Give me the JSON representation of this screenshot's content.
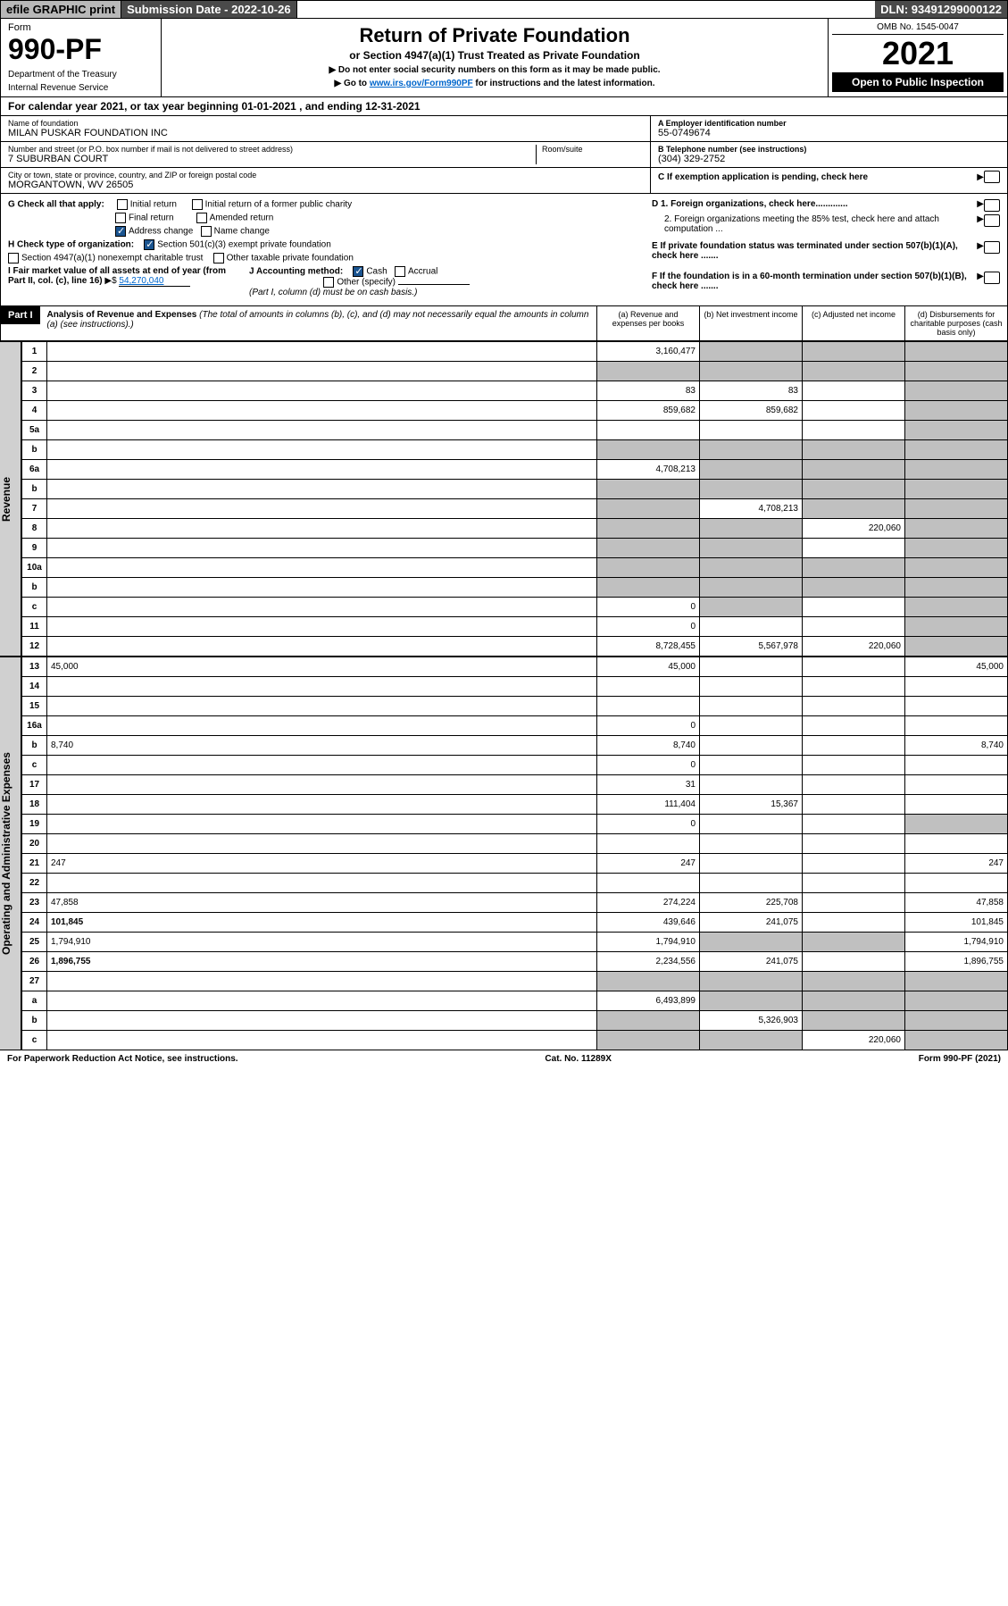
{
  "topbar": {
    "efile": "efile GRAPHIC print",
    "subdate_label": "Submission Date - 2022-10-26",
    "dln": "DLN: 93491299000122"
  },
  "header": {
    "form_word": "Form",
    "form_num": "990-PF",
    "dept": "Department of the Treasury",
    "irs": "Internal Revenue Service",
    "title": "Return of Private Foundation",
    "subtitle": "or Section 4947(a)(1) Trust Treated as Private Foundation",
    "note1": "▶ Do not enter social security numbers on this form as it may be made public.",
    "note2_pre": "▶ Go to ",
    "note2_link": "www.irs.gov/Form990PF",
    "note2_post": " for instructions and the latest information.",
    "omb": "OMB No. 1545-0047",
    "year": "2021",
    "open": "Open to Public Inspection"
  },
  "calyear": "For calendar year 2021, or tax year beginning 01-01-2021                          , and ending 12-31-2021",
  "info": {
    "name_label": "Name of foundation",
    "name": "MILAN PUSKAR FOUNDATION INC",
    "addr_label": "Number and street (or P.O. box number if mail is not delivered to street address)",
    "addr": "7 SUBURBAN COURT",
    "room_label": "Room/suite",
    "city_label": "City or town, state or province, country, and ZIP or foreign postal code",
    "city": "MORGANTOWN, WV  26505",
    "ein_label": "A Employer identification number",
    "ein": "55-0749674",
    "tel_label": "B Telephone number (see instructions)",
    "tel": "(304) 329-2752",
    "c_label": "C If exemption application is pending, check here",
    "d1": "D 1. Foreign organizations, check here.............",
    "d2": "2. Foreign organizations meeting the 85% test, check here and attach computation ...",
    "e": "E  If private foundation status was terminated under section 507(b)(1)(A), check here .......",
    "f": "F  If the foundation is in a 60-month termination under section 507(b)(1)(B), check here .......",
    "g_label": "G Check all that apply:",
    "g_initial": "Initial return",
    "g_initial_former": "Initial return of a former public charity",
    "g_final": "Final return",
    "g_amended": "Amended return",
    "g_address": "Address change",
    "g_name": "Name change",
    "h_label": "H Check type of organization:",
    "h_501c3": "Section 501(c)(3) exempt private foundation",
    "h_4947": "Section 4947(a)(1) nonexempt charitable trust",
    "h_other": "Other taxable private foundation",
    "i_label": "I Fair market value of all assets at end of year (from Part II, col. (c), line 16)",
    "i_val": "54,270,040",
    "j_label": "J Accounting method:",
    "j_cash": "Cash",
    "j_accrual": "Accrual",
    "j_other": "Other (specify)",
    "j_note": "(Part I, column (d) must be on cash basis.)"
  },
  "part1": {
    "badge": "Part I",
    "title": "Analysis of Revenue and Expenses",
    "title_note": " (The total of amounts in columns (b), (c), and (d) may not necessarily equal the amounts in column (a) (see instructions).)",
    "col_a": "(a)   Revenue and expenses per books",
    "col_b": "(b)   Net investment income",
    "col_c": "(c)   Adjusted net income",
    "col_d": "(d)   Disbursements for charitable purposes (cash basis only)"
  },
  "side_revenue": "Revenue",
  "side_expenses": "Operating and Administrative Expenses",
  "rows": [
    {
      "n": "1",
      "d": "",
      "a": "3,160,477",
      "b": "",
      "c": "",
      "grey": [
        "b",
        "c",
        "d"
      ]
    },
    {
      "n": "2",
      "d": "",
      "a": "",
      "b": "",
      "c": "",
      "grey": [
        "a",
        "b",
        "c",
        "d"
      ]
    },
    {
      "n": "3",
      "d": "",
      "a": "83",
      "b": "83",
      "c": "",
      "grey": [
        "d"
      ]
    },
    {
      "n": "4",
      "d": "",
      "a": "859,682",
      "b": "859,682",
      "c": "",
      "grey": [
        "d"
      ]
    },
    {
      "n": "5a",
      "d": "",
      "a": "",
      "b": "",
      "c": "",
      "grey": [
        "d"
      ]
    },
    {
      "n": "b",
      "d": "",
      "a": "",
      "b": "",
      "c": "",
      "grey": [
        "a",
        "b",
        "c",
        "d"
      ]
    },
    {
      "n": "6a",
      "d": "",
      "a": "4,708,213",
      "b": "",
      "c": "",
      "grey": [
        "b",
        "c",
        "d"
      ]
    },
    {
      "n": "b",
      "d": "",
      "a": "",
      "b": "",
      "c": "",
      "grey": [
        "a",
        "b",
        "c",
        "d"
      ]
    },
    {
      "n": "7",
      "d": "",
      "a": "",
      "b": "4,708,213",
      "c": "",
      "grey": [
        "a",
        "c",
        "d"
      ]
    },
    {
      "n": "8",
      "d": "",
      "a": "",
      "b": "",
      "c": "220,060",
      "grey": [
        "a",
        "b",
        "d"
      ]
    },
    {
      "n": "9",
      "d": "",
      "a": "",
      "b": "",
      "c": "",
      "grey": [
        "a",
        "b",
        "d"
      ]
    },
    {
      "n": "10a",
      "d": "",
      "a": "",
      "b": "",
      "c": "",
      "grey": [
        "a",
        "b",
        "c",
        "d"
      ]
    },
    {
      "n": "b",
      "d": "",
      "a": "",
      "b": "",
      "c": "",
      "grey": [
        "a",
        "b",
        "c",
        "d"
      ]
    },
    {
      "n": "c",
      "d": "",
      "a": "0",
      "b": "",
      "c": "",
      "grey": [
        "b",
        "d"
      ]
    },
    {
      "n": "11",
      "d": "",
      "a": "0",
      "b": "",
      "c": "",
      "grey": [
        "d"
      ]
    },
    {
      "n": "12",
      "d": "",
      "a": "8,728,455",
      "b": "5,567,978",
      "c": "220,060",
      "grey": [
        "d"
      ],
      "bold": true
    }
  ],
  "exp_rows": [
    {
      "n": "13",
      "d": "45,000",
      "a": "45,000",
      "b": "",
      "c": ""
    },
    {
      "n": "14",
      "d": "",
      "a": "",
      "b": "",
      "c": ""
    },
    {
      "n": "15",
      "d": "",
      "a": "",
      "b": "",
      "c": ""
    },
    {
      "n": "16a",
      "d": "",
      "a": "0",
      "b": "",
      "c": ""
    },
    {
      "n": "b",
      "d": "8,740",
      "a": "8,740",
      "b": "",
      "c": ""
    },
    {
      "n": "c",
      "d": "",
      "a": "0",
      "b": "",
      "c": ""
    },
    {
      "n": "17",
      "d": "",
      "a": "31",
      "b": "",
      "c": ""
    },
    {
      "n": "18",
      "d": "",
      "a": "111,404",
      "b": "15,367",
      "c": ""
    },
    {
      "n": "19",
      "d": "",
      "a": "0",
      "b": "",
      "c": "",
      "grey": [
        "d"
      ]
    },
    {
      "n": "20",
      "d": "",
      "a": "",
      "b": "",
      "c": ""
    },
    {
      "n": "21",
      "d": "247",
      "a": "247",
      "b": "",
      "c": ""
    },
    {
      "n": "22",
      "d": "",
      "a": "",
      "b": "",
      "c": ""
    },
    {
      "n": "23",
      "d": "47,858",
      "a": "274,224",
      "b": "225,708",
      "c": ""
    },
    {
      "n": "24",
      "d": "101,845",
      "a": "439,646",
      "b": "241,075",
      "c": "",
      "bold": true
    },
    {
      "n": "25",
      "d": "1,794,910",
      "a": "1,794,910",
      "b": "",
      "c": "",
      "grey": [
        "b",
        "c"
      ]
    },
    {
      "n": "26",
      "d": "1,896,755",
      "a": "2,234,556",
      "b": "241,075",
      "c": "",
      "bold": true
    },
    {
      "n": "27",
      "d": "",
      "a": "",
      "b": "",
      "c": "",
      "grey": [
        "a",
        "b",
        "c",
        "d"
      ]
    },
    {
      "n": "a",
      "d": "",
      "a": "6,493,899",
      "b": "",
      "c": "",
      "grey": [
        "b",
        "c",
        "d"
      ],
      "bold": true
    },
    {
      "n": "b",
      "d": "",
      "a": "",
      "b": "5,326,903",
      "c": "",
      "grey": [
        "a",
        "c",
        "d"
      ],
      "bold": true
    },
    {
      "n": "c",
      "d": "",
      "a": "",
      "b": "",
      "c": "220,060",
      "grey": [
        "a",
        "b",
        "d"
      ],
      "bold": true
    }
  ],
  "footer": {
    "left": "For Paperwork Reduction Act Notice, see instructions.",
    "mid": "Cat. No. 11289X",
    "right": "Form 990-PF (2021)"
  }
}
